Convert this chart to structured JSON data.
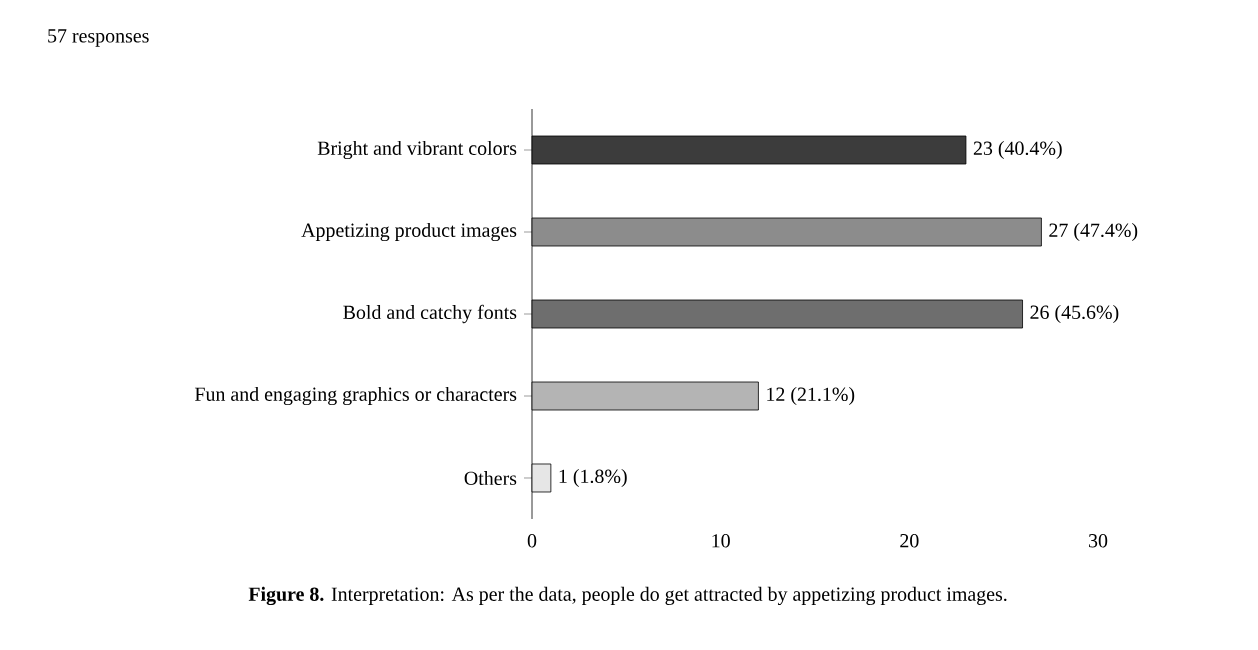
{
  "chart_data": {
    "type": "bar",
    "orientation": "horizontal",
    "title": "57 responses",
    "categories": [
      "Bright and vibrant colors",
      "Appetizing product images",
      "Bold and catchy fonts",
      "Fun and engaging graphics or characters",
      "Others"
    ],
    "values": [
      23,
      27,
      26,
      12,
      1
    ],
    "value_labels": [
      "23 (40.4%)",
      "27 (47.4%)",
      "26 (45.6%)",
      "12 (21.1%)",
      "1 (1.8%)"
    ],
    "colors": [
      "#3c3c3c",
      "#8c8c8c",
      "#6e6e6e",
      "#b4b4b4",
      "#e6e6e6"
    ],
    "xlim": [
      0,
      30
    ],
    "xticks": [
      0,
      10,
      20,
      30
    ],
    "annotations": [
      "**Figure 8.** Interpretation: As per the data, people do get attracted by appetizing product images."
    ]
  }
}
